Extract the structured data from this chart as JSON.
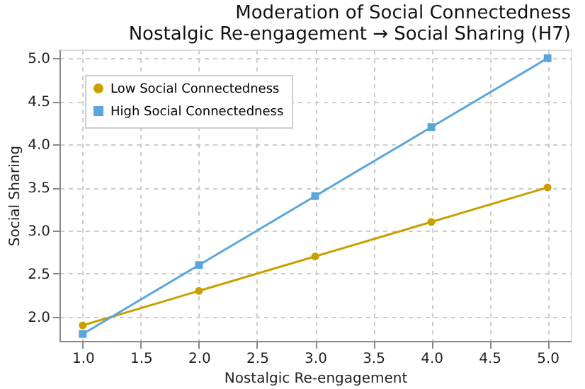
{
  "chart_data": {
    "type": "line",
    "title": [
      "Moderation of Social Connectedness",
      "Nostalgic Re-engagement → Social Sharing (H7)"
    ],
    "xlabel": "Nostalgic Re-engagement",
    "ylabel": "Social Sharing",
    "x": [
      1.0,
      2.0,
      3.0,
      4.0,
      5.0
    ],
    "series": [
      {
        "name": "Low Social Connectedness",
        "color": "#c9a000",
        "marker": "circle",
        "values": [
          1.9,
          2.3,
          2.7,
          3.1,
          3.5
        ]
      },
      {
        "name": "High Social Connectedness",
        "color": "#5aa6dc",
        "marker": "square",
        "values": [
          1.8,
          2.6,
          3.4,
          4.2,
          5.0
        ]
      }
    ],
    "xlim": [
      0.8,
      5.2
    ],
    "xticks": [
      {
        "value": 1,
        "label": "1.0"
      },
      1.5,
      {
        "value": 2,
        "label": "2.0"
      },
      2.5,
      {
        "value": 3,
        "label": "3.0"
      },
      3.5,
      {
        "value": 4,
        "label": "4.0"
      },
      4.5,
      {
        "value": 5,
        "label": "5.0"
      }
    ],
    "ylim": [
      1.72,
      5.1
    ],
    "yticks": [
      {
        "value": 2,
        "label": "2.0"
      },
      2.5,
      {
        "value": 3,
        "label": "3.0"
      },
      3.5,
      {
        "value": 4,
        "label": "4.0"
      },
      4.5,
      {
        "value": 5,
        "label": "5.0"
      }
    ],
    "grid": true,
    "legend": "top left",
    "line_style": "solid"
  }
}
